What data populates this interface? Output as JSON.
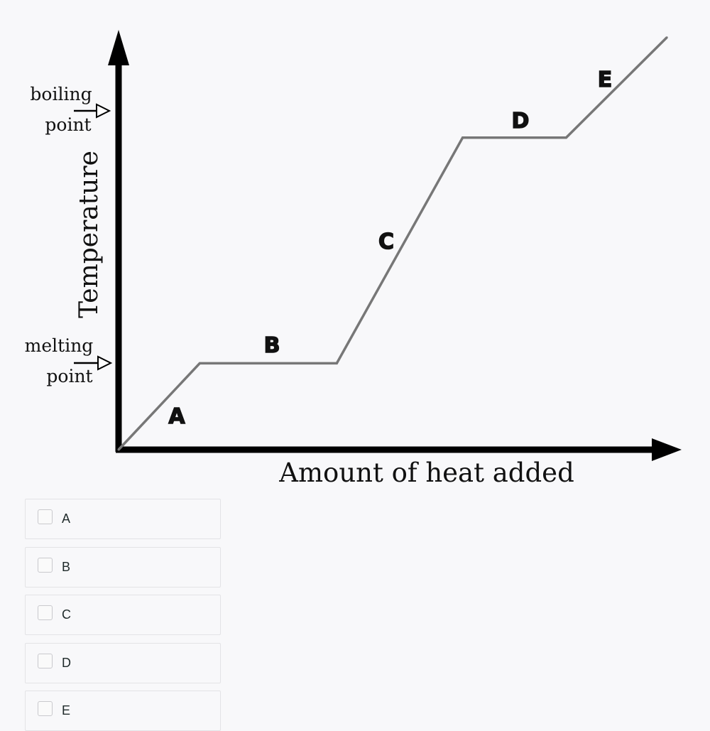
{
  "chart": {
    "ylabel": "Temperature",
    "xlabel": "Amount of heat added",
    "y_markers": [
      {
        "line1": "boiling",
        "line2": "point"
      },
      {
        "line1": "melting",
        "line2": "point"
      }
    ],
    "segments": [
      "A",
      "B",
      "C",
      "D",
      "E"
    ]
  },
  "chart_data": {
    "type": "line",
    "title": "",
    "xlabel": "Amount of heat added",
    "ylabel": "Temperature",
    "series": [
      {
        "points": [
          [
            0,
            0
          ],
          [
            14.5,
            15.5
          ],
          [
            39,
            15.5
          ],
          [
            61.5,
            56
          ],
          [
            80,
            56
          ],
          [
            98,
            74
          ]
        ]
      }
    ],
    "xlim": [
      0,
      100
    ],
    "ylim": [
      0,
      76
    ],
    "y_reference_labels": [
      "melting point",
      "boiling point"
    ],
    "segment_labels": [
      "A",
      "B",
      "C",
      "D",
      "E"
    ],
    "grid": false,
    "colors": {
      "line": "#777777",
      "axes": "#000000"
    }
  },
  "options": [
    {
      "label": "A"
    },
    {
      "label": "B"
    },
    {
      "label": "C"
    },
    {
      "label": "D"
    },
    {
      "label": "E"
    }
  ]
}
